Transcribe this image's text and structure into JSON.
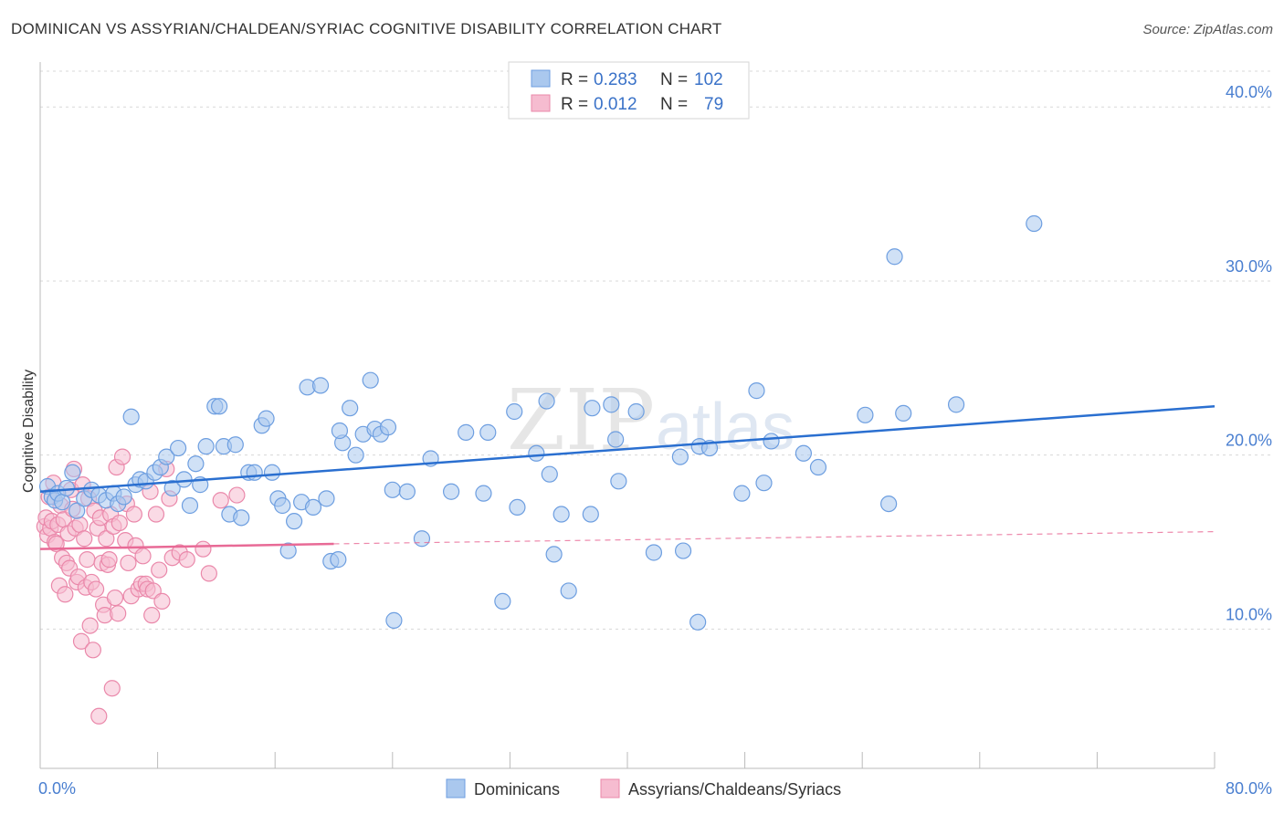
{
  "header": {
    "title": "DOMINICAN VS ASSYRIAN/CHALDEAN/SYRIAC COGNITIVE DISABILITY CORRELATION CHART",
    "source": "Source: ZipAtlas.com"
  },
  "watermark": {
    "zip": "ZIP",
    "atlas": "atlas"
  },
  "colors": {
    "blue_fill": "#aac8ee",
    "blue_stroke": "#6d9ee0",
    "blue_line": "#2a6fd0",
    "pink_fill": "#f6bcd0",
    "pink_stroke": "#ea88aa",
    "pink_line": "#e86a96",
    "tick_text": "#4a7fd0",
    "grid": "#d8d8d8"
  },
  "legend": {
    "rows": [
      {
        "r_label": "R = ",
        "r_value": "0.283",
        "n_label": "N = ",
        "n_value": "102"
      },
      {
        "r_label": "R = ",
        "r_value": "0.012",
        "n_label": "N = ",
        "n_value": "79"
      }
    ]
  },
  "chart_data": {
    "type": "scatter",
    "title": "DOMINICAN VS ASSYRIAN/CHALDEAN/SYRIAC COGNITIVE DISABILITY CORRELATION CHART",
    "xlabel": "",
    "ylabel": "Cognitive Disability",
    "xlim": [
      0,
      80
    ],
    "ylim": [
      2.0,
      43.0
    ],
    "x_tick_labels": [
      "0.0%",
      "80.0%"
    ],
    "y_ticks": [
      10,
      20,
      30,
      40
    ],
    "y_tick_labels": [
      "10.0%",
      "20.0%",
      "30.0%",
      "40.0%"
    ],
    "grid": true,
    "legend_position": "top-center",
    "series": [
      {
        "name": "Dominicans",
        "color": "#aac8ee",
        "trend": {
          "x": [
            0,
            80
          ],
          "y": [
            17.9,
            22.8
          ],
          "style": "solid"
        },
        "points": [
          [
            0.5,
            18.2
          ],
          [
            0.8,
            17.6
          ],
          [
            1.0,
            17.4
          ],
          [
            1.2,
            17.8
          ],
          [
            1.5,
            17.3
          ],
          [
            1.8,
            18.1
          ],
          [
            2.2,
            19.0
          ],
          [
            2.5,
            16.8
          ],
          [
            3.0,
            17.5
          ],
          [
            3.5,
            18.0
          ],
          [
            4.0,
            17.7
          ],
          [
            4.5,
            17.4
          ],
          [
            5.0,
            17.8
          ],
          [
            5.3,
            17.2
          ],
          [
            5.7,
            17.6
          ],
          [
            6.2,
            22.2
          ],
          [
            6.5,
            18.3
          ],
          [
            6.8,
            18.6
          ],
          [
            7.2,
            18.5
          ],
          [
            7.8,
            19.0
          ],
          [
            8.2,
            19.3
          ],
          [
            8.6,
            19.9
          ],
          [
            9.0,
            18.1
          ],
          [
            9.4,
            20.4
          ],
          [
            9.8,
            18.6
          ],
          [
            10.2,
            17.1
          ],
          [
            10.6,
            19.5
          ],
          [
            10.9,
            18.3
          ],
          [
            11.3,
            20.5
          ],
          [
            11.9,
            22.8
          ],
          [
            12.2,
            22.8
          ],
          [
            12.5,
            20.5
          ],
          [
            12.9,
            16.6
          ],
          [
            13.3,
            20.6
          ],
          [
            13.7,
            16.4
          ],
          [
            14.2,
            19.0
          ],
          [
            14.6,
            19.0
          ],
          [
            15.1,
            21.7
          ],
          [
            15.4,
            22.1
          ],
          [
            15.8,
            19.0
          ],
          [
            16.2,
            17.5
          ],
          [
            16.5,
            17.1
          ],
          [
            16.9,
            14.5
          ],
          [
            17.3,
            16.2
          ],
          [
            17.8,
            17.3
          ],
          [
            18.2,
            23.9
          ],
          [
            18.6,
            17.0
          ],
          [
            19.1,
            24.0
          ],
          [
            19.5,
            17.5
          ],
          [
            19.8,
            13.9
          ],
          [
            20.3,
            14.0
          ],
          [
            20.6,
            20.7
          ],
          [
            21.1,
            22.7
          ],
          [
            21.5,
            20.0
          ],
          [
            22.0,
            21.2
          ],
          [
            22.5,
            24.3
          ],
          [
            22.8,
            21.5
          ],
          [
            23.2,
            21.2
          ],
          [
            23.7,
            21.6
          ],
          [
            24.1,
            10.5
          ],
          [
            24.0,
            18.0
          ],
          [
            25.0,
            17.9
          ],
          [
            26.0,
            15.2
          ],
          [
            26.6,
            19.8
          ],
          [
            28.0,
            17.9
          ],
          [
            29.0,
            21.3
          ],
          [
            30.2,
            17.8
          ],
          [
            30.5,
            21.3
          ],
          [
            31.5,
            11.6
          ],
          [
            32.3,
            22.5
          ],
          [
            32.5,
            17.0
          ],
          [
            33.8,
            20.1
          ],
          [
            34.5,
            23.1
          ],
          [
            34.7,
            18.9
          ],
          [
            35.0,
            14.3
          ],
          [
            35.5,
            16.6
          ],
          [
            36.0,
            12.2
          ],
          [
            37.6,
            22.7
          ],
          [
            37.5,
            16.6
          ],
          [
            38.9,
            22.9
          ],
          [
            39.2,
            20.9
          ],
          [
            39.4,
            18.5
          ],
          [
            41.8,
            14.4
          ],
          [
            43.6,
            19.9
          ],
          [
            43.8,
            14.5
          ],
          [
            44.8,
            10.4
          ],
          [
            44.9,
            20.5
          ],
          [
            45.6,
            20.4
          ],
          [
            47.8,
            17.8
          ],
          [
            48.8,
            23.7
          ],
          [
            49.3,
            18.4
          ],
          [
            49.8,
            20.8
          ],
          [
            53.0,
            19.3
          ],
          [
            56.2,
            22.3
          ],
          [
            57.8,
            17.2
          ],
          [
            58.2,
            31.4
          ],
          [
            58.8,
            22.4
          ],
          [
            62.4,
            22.9
          ],
          [
            67.7,
            33.3
          ],
          [
            52.0,
            20.1
          ],
          [
            40.6,
            22.5
          ],
          [
            20.4,
            21.4
          ]
        ]
      },
      {
        "name": "Assyrians/Chaldeans/Syriacs",
        "color": "#f6bcd0",
        "trend": {
          "x": [
            0,
            20
          ],
          "y": [
            14.6,
            14.9
          ],
          "style": "solid",
          "extended": {
            "x": [
              20,
              80
            ],
            "y": [
              14.9,
              15.6
            ],
            "style": "dashed"
          }
        },
        "points": [
          [
            0.3,
            15.9
          ],
          [
            0.4,
            16.4
          ],
          [
            0.5,
            15.4
          ],
          [
            0.6,
            17.6
          ],
          [
            0.7,
            15.8
          ],
          [
            0.8,
            16.2
          ],
          [
            0.9,
            18.4
          ],
          [
            1.0,
            15.0
          ],
          [
            1.1,
            14.9
          ],
          [
            1.2,
            16.0
          ],
          [
            1.3,
            12.5
          ],
          [
            1.4,
            17.1
          ],
          [
            1.5,
            14.1
          ],
          [
            1.6,
            16.3
          ],
          [
            1.7,
            12.0
          ],
          [
            1.8,
            13.8
          ],
          [
            1.9,
            15.5
          ],
          [
            2.0,
            13.5
          ],
          [
            2.1,
            18.0
          ],
          [
            2.2,
            16.9
          ],
          [
            2.3,
            19.2
          ],
          [
            2.4,
            15.8
          ],
          [
            2.5,
            12.7
          ],
          [
            2.6,
            13.0
          ],
          [
            2.7,
            16.0
          ],
          [
            2.8,
            9.3
          ],
          [
            2.9,
            18.3
          ],
          [
            3.0,
            15.2
          ],
          [
            3.1,
            12.4
          ],
          [
            3.2,
            14.0
          ],
          [
            3.3,
            17.5
          ],
          [
            3.4,
            10.2
          ],
          [
            3.5,
            12.7
          ],
          [
            3.6,
            8.8
          ],
          [
            3.7,
            16.8
          ],
          [
            3.8,
            12.3
          ],
          [
            3.9,
            15.8
          ],
          [
            4.0,
            5.0
          ],
          [
            4.1,
            16.4
          ],
          [
            4.2,
            13.8
          ],
          [
            4.3,
            11.4
          ],
          [
            4.4,
            10.8
          ],
          [
            4.5,
            15.2
          ],
          [
            4.6,
            13.7
          ],
          [
            4.7,
            14.0
          ],
          [
            4.8,
            16.6
          ],
          [
            4.9,
            6.6
          ],
          [
            5.0,
            15.9
          ],
          [
            5.1,
            11.8
          ],
          [
            5.2,
            19.3
          ],
          [
            5.3,
            10.9
          ],
          [
            5.4,
            16.1
          ],
          [
            5.6,
            19.9
          ],
          [
            5.8,
            15.1
          ],
          [
            5.9,
            17.2
          ],
          [
            6.0,
            13.8
          ],
          [
            6.2,
            11.9
          ],
          [
            6.4,
            16.6
          ],
          [
            6.5,
            14.8
          ],
          [
            6.7,
            12.3
          ],
          [
            6.9,
            12.6
          ],
          [
            7.0,
            14.2
          ],
          [
            7.2,
            12.6
          ],
          [
            7.3,
            12.3
          ],
          [
            7.5,
            17.9
          ],
          [
            7.6,
            10.8
          ],
          [
            7.7,
            12.2
          ],
          [
            7.9,
            16.6
          ],
          [
            8.1,
            13.4
          ],
          [
            8.3,
            11.6
          ],
          [
            8.6,
            19.2
          ],
          [
            8.8,
            17.5
          ],
          [
            9.0,
            14.1
          ],
          [
            9.5,
            14.4
          ],
          [
            10.0,
            14.0
          ],
          [
            11.1,
            14.6
          ],
          [
            11.5,
            13.2
          ],
          [
            12.3,
            17.4
          ],
          [
            13.4,
            17.7
          ]
        ]
      }
    ]
  },
  "bottom_legend": {
    "items": [
      {
        "label": "Dominicans"
      },
      {
        "label": "Assyrians/Chaldeans/Syriacs"
      }
    ]
  }
}
